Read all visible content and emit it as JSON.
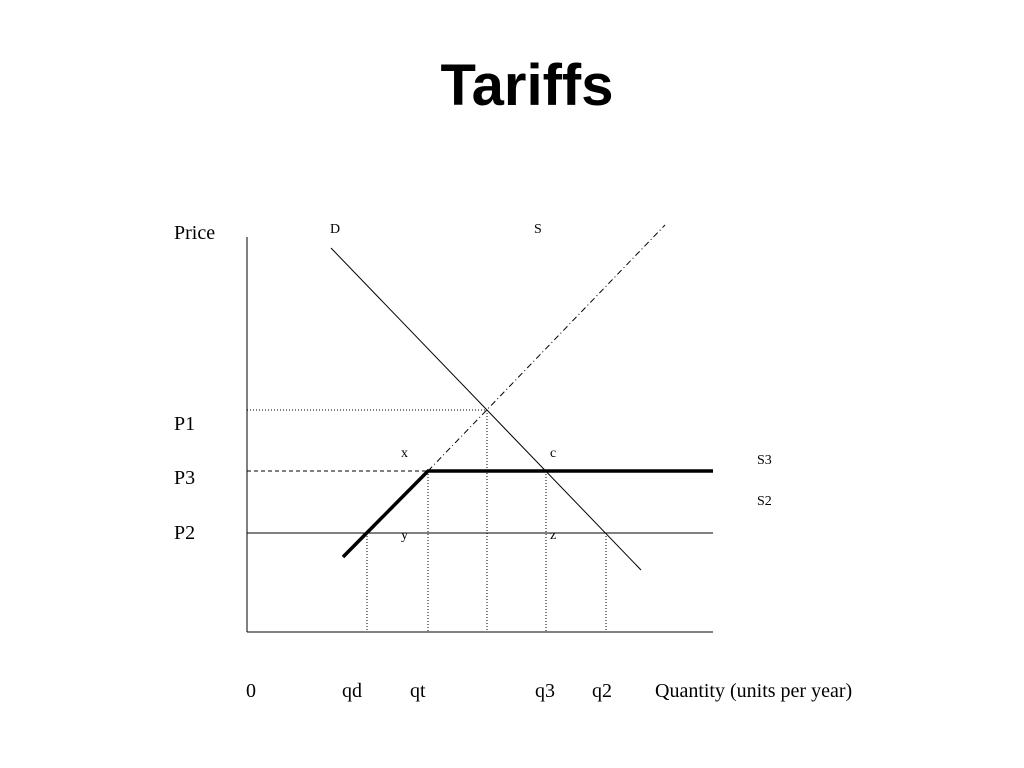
{
  "title": "Tariffs",
  "y_axis_label": "Price",
  "x_axis_label": "Quantity (units per year)",
  "curves": {
    "demand": "D",
    "supply": "S",
    "supply_world_tariff": "S3",
    "supply_world": "S2"
  },
  "prices": [
    "P1",
    "P3",
    "P2"
  ],
  "quantities": [
    "0",
    "qd",
    "qt",
    "q3",
    "q2"
  ],
  "points": [
    "x",
    "c",
    "y",
    "z"
  ]
}
